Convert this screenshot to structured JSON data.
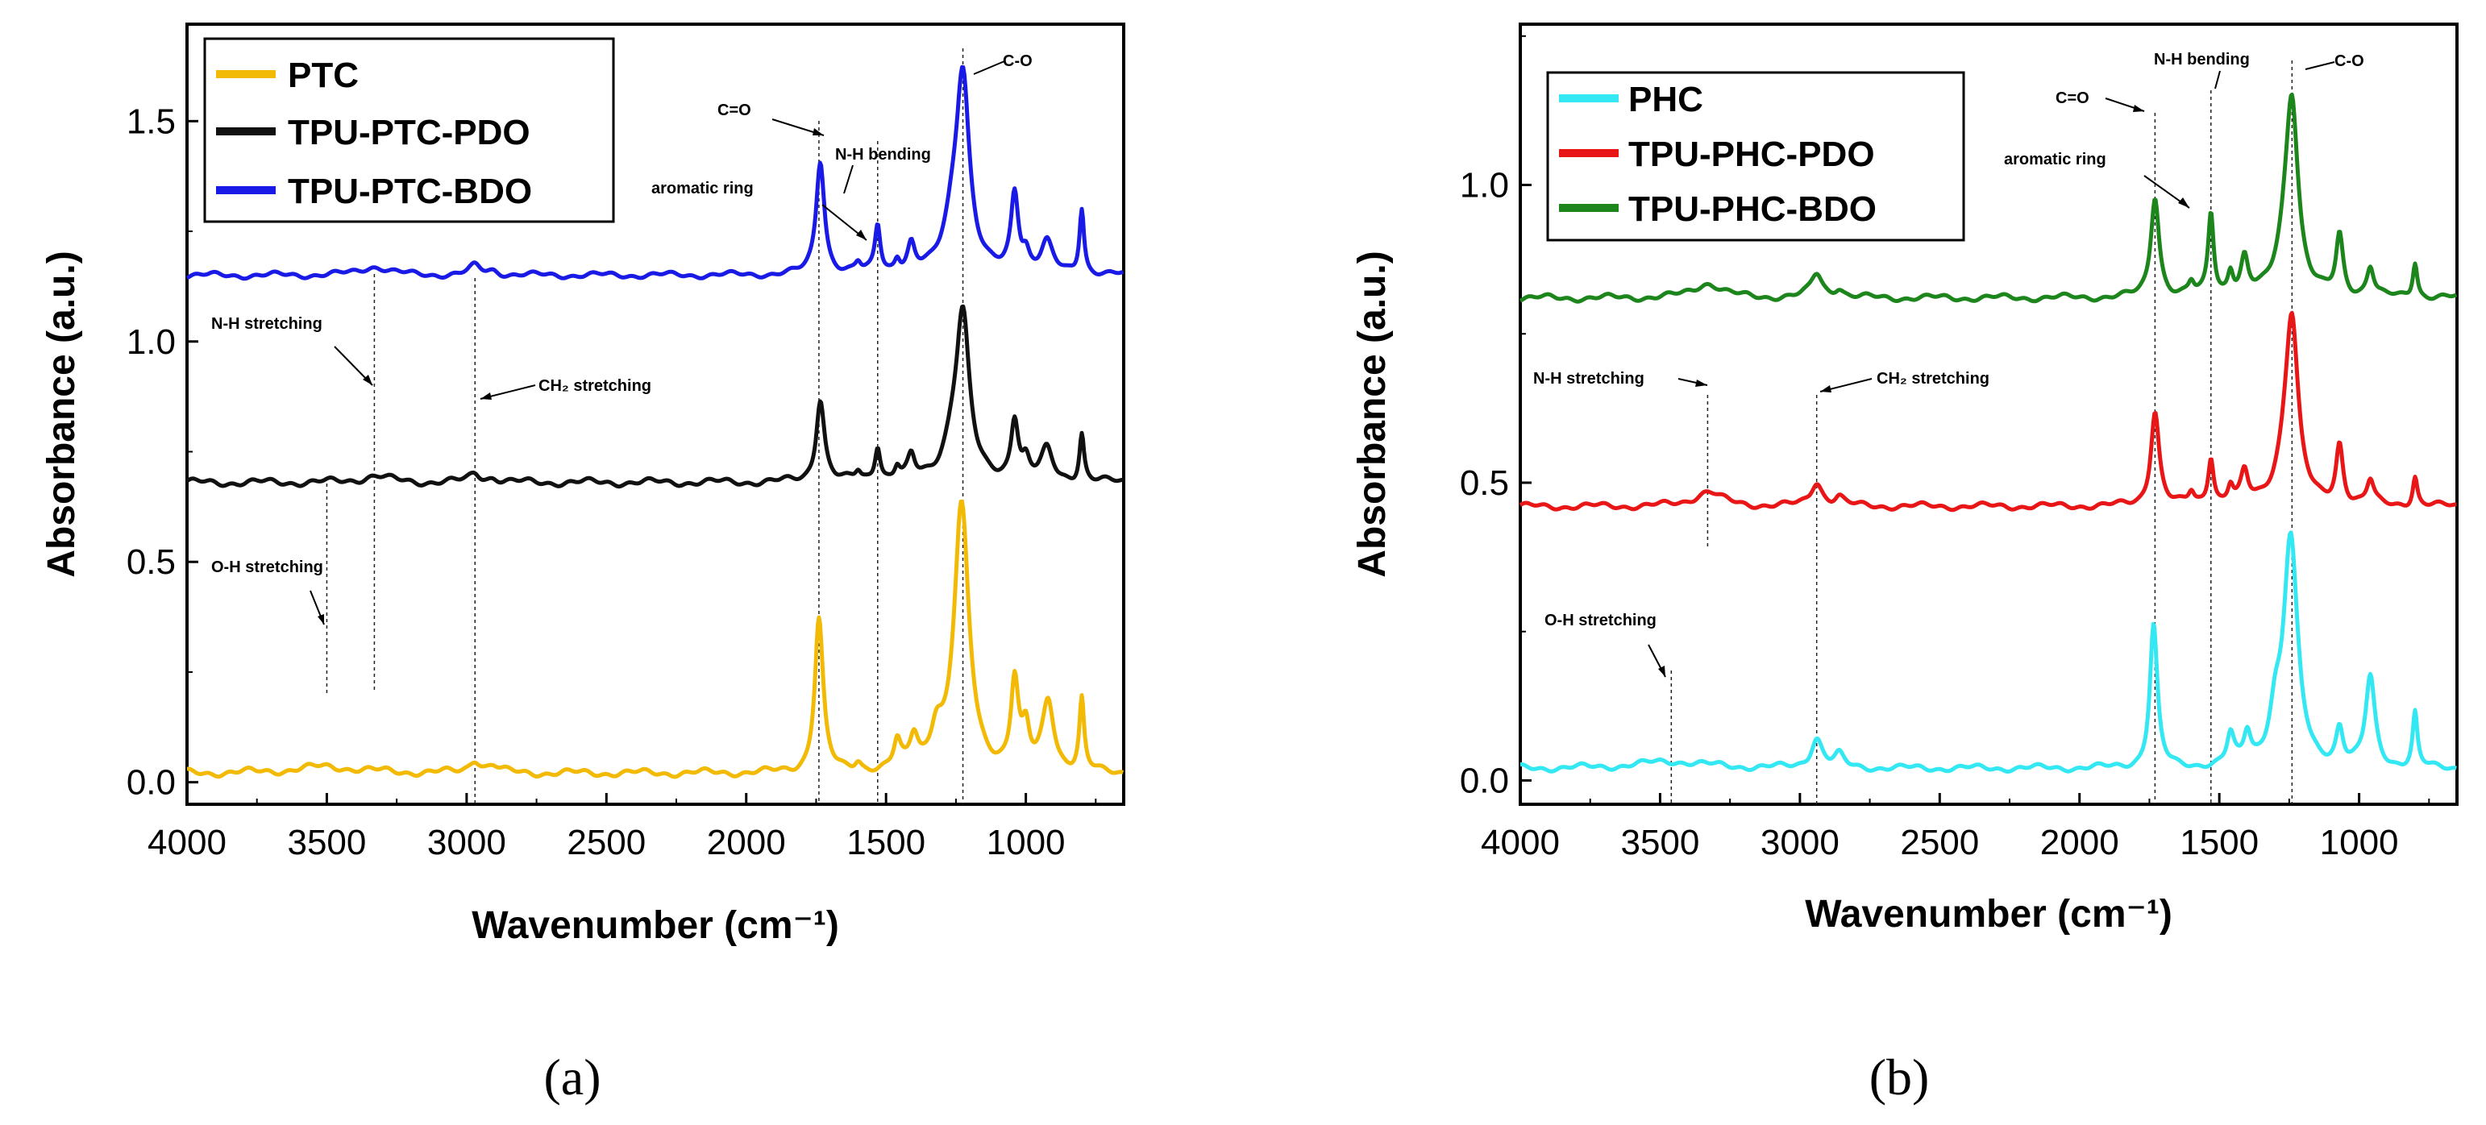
{
  "chart_data": [
    {
      "type": "line",
      "panel_label": "(a)",
      "xlabel": "Wavenumber (cm⁻¹)",
      "ylabel": "Absorbance (a.u.)",
      "xlim": [
        4000,
        650
      ],
      "ylim": [
        -0.05,
        1.72
      ],
      "x_reversed": true,
      "xticks": [
        4000,
        3500,
        3000,
        2500,
        2000,
        1500,
        1000
      ],
      "xtick_labels": [
        "4000",
        "3500",
        "3000",
        "2500",
        "2000",
        "1500",
        "1000"
      ],
      "yticks": [
        0.0,
        0.5,
        1.0,
        1.5
      ],
      "ytick_labels": [
        "0.0",
        "0.5",
        "1.0",
        "1.5"
      ],
      "legend_position": "top-left",
      "series": [
        {
          "name": "PTC",
          "color": "#F2BA04",
          "baseline": 0.02,
          "wavy": 0.006,
          "peaks": [
            [
              3500,
              0.015,
              150
            ],
            [
              2970,
              0.03,
              25
            ],
            [
              2905,
              0.015,
              25
            ],
            [
              1740,
              0.35,
              18
            ],
            [
              1600,
              0.02,
              15
            ],
            [
              1460,
              0.06,
              15
            ],
            [
              1400,
              0.07,
              18
            ],
            [
              1320,
              0.08,
              25
            ],
            [
              1230,
              0.6,
              32
            ],
            [
              1040,
              0.2,
              16
            ],
            [
              1000,
              0.08,
              15
            ],
            [
              920,
              0.16,
              25
            ],
            [
              800,
              0.16,
              10
            ]
          ]
        },
        {
          "name": "TPU-PTC-PDO",
          "color": "#111111",
          "baseline": 0.68,
          "wavy": 0.006,
          "peaks": [
            [
              3330,
              0.015,
              60
            ],
            [
              2970,
              0.02,
              25
            ],
            [
              2905,
              0.01,
              25
            ],
            [
              1735,
              0.19,
              18
            ],
            [
              1600,
              0.02,
              12
            ],
            [
              1530,
              0.08,
              12
            ],
            [
              1460,
              0.03,
              12
            ],
            [
              1410,
              0.05,
              15
            ],
            [
              1260,
              0.08,
              40
            ],
            [
              1225,
              0.35,
              28
            ],
            [
              1040,
              0.14,
              16
            ],
            [
              1000,
              0.04,
              15
            ],
            [
              925,
              0.07,
              25
            ],
            [
              800,
              0.11,
              10
            ]
          ]
        },
        {
          "name": "TPU-PTC-BDO",
          "color": "#1A1AE6",
          "baseline": 1.15,
          "wavy": 0.005,
          "peaks": [
            [
              3330,
              0.02,
              60
            ],
            [
              2970,
              0.02,
              25
            ],
            [
              2905,
              0.01,
              25
            ],
            [
              1735,
              0.26,
              18
            ],
            [
              1600,
              0.02,
              12
            ],
            [
              1530,
              0.11,
              12
            ],
            [
              1460,
              0.03,
              12
            ],
            [
              1410,
              0.06,
              15
            ],
            [
              1260,
              0.1,
              40
            ],
            [
              1225,
              0.42,
              28
            ],
            [
              1040,
              0.18,
              16
            ],
            [
              1000,
              0.04,
              15
            ],
            [
              925,
              0.07,
              25
            ],
            [
              800,
              0.15,
              10
            ]
          ]
        }
      ],
      "annotations": [
        {
          "text": "C=O",
          "x": 1740
        },
        {
          "text": "N-H bending",
          "x": 1530
        },
        {
          "text": "aromatic ring",
          "x": 1600
        },
        {
          "text": "C-O",
          "x": 1225
        },
        {
          "text": "N-H stretching",
          "x": 3330
        },
        {
          "text": "CH₂ stretching",
          "x": 2970
        },
        {
          "text": "O-H stretching",
          "x": 3500
        }
      ]
    },
    {
      "type": "line",
      "panel_label": "(b)",
      "xlabel": "Wavenumber (cm⁻¹)",
      "ylabel": "Absorbance (a.u.)",
      "xlim": [
        4000,
        650
      ],
      "ylim": [
        -0.04,
        1.27
      ],
      "x_reversed": true,
      "xticks": [
        4000,
        3500,
        3000,
        2500,
        2000,
        1500,
        1000
      ],
      "xtick_labels": [
        "4000",
        "3500",
        "3000",
        "2500",
        "2000",
        "1500",
        "1000"
      ],
      "yticks": [
        0.0,
        0.5,
        1.0
      ],
      "ytick_labels": [
        "0.0",
        "0.5",
        "1.0"
      ],
      "legend_position": "top-left",
      "series": [
        {
          "name": "PHC",
          "color": "#33E8F2",
          "baseline": 0.02,
          "wavy": 0.004,
          "peaks": [
            [
              3460,
              0.012,
              150
            ],
            [
              2940,
              0.05,
              25
            ],
            [
              2860,
              0.02,
              20
            ],
            [
              1735,
              0.24,
              16
            ],
            [
              1460,
              0.05,
              15
            ],
            [
              1400,
              0.05,
              15
            ],
            [
              1300,
              0.07,
              25
            ],
            [
              1245,
              0.38,
              30
            ],
            [
              1070,
              0.06,
              15
            ],
            [
              960,
              0.15,
              20
            ],
            [
              800,
              0.09,
              10
            ]
          ]
        },
        {
          "name": "TPU-PHC-PDO",
          "color": "#E81616",
          "baseline": 0.46,
          "wavy": 0.004,
          "peaks": [
            [
              3330,
              0.025,
              60
            ],
            [
              2940,
              0.04,
              25
            ],
            [
              2860,
              0.015,
              20
            ],
            [
              1730,
              0.16,
              18
            ],
            [
              1600,
              0.02,
              12
            ],
            [
              1530,
              0.08,
              12
            ],
            [
              1460,
              0.03,
              12
            ],
            [
              1410,
              0.05,
              15
            ],
            [
              1260,
              0.07,
              40
            ],
            [
              1240,
              0.27,
              26
            ],
            [
              1070,
              0.1,
              15
            ],
            [
              960,
              0.04,
              15
            ],
            [
              800,
              0.05,
              10
            ]
          ]
        },
        {
          "name": "TPU-PHC-BDO",
          "color": "#1C861C",
          "baseline": 0.81,
          "wavy": 0.004,
          "peaks": [
            [
              3330,
              0.025,
              60
            ],
            [
              2940,
              0.04,
              25
            ],
            [
              2860,
              0.015,
              20
            ],
            [
              1730,
              0.17,
              18
            ],
            [
              1600,
              0.02,
              12
            ],
            [
              1530,
              0.14,
              12
            ],
            [
              1460,
              0.04,
              12
            ],
            [
              1410,
              0.06,
              15
            ],
            [
              1260,
              0.07,
              40
            ],
            [
              1240,
              0.29,
              26
            ],
            [
              1070,
              0.1,
              15
            ],
            [
              960,
              0.05,
              15
            ],
            [
              800,
              0.06,
              10
            ]
          ]
        }
      ],
      "annotations": [
        {
          "text": "C=O",
          "x": 1730
        },
        {
          "text": "N-H bending",
          "x": 1530
        },
        {
          "text": "aromatic ring",
          "x": 1600
        },
        {
          "text": "C-O",
          "x": 1240
        },
        {
          "text": "N-H stretching",
          "x": 3330
        },
        {
          "text": "CH₂ stretching",
          "x": 2940
        },
        {
          "text": "O-H stretching",
          "x": 3460
        }
      ]
    }
  ]
}
